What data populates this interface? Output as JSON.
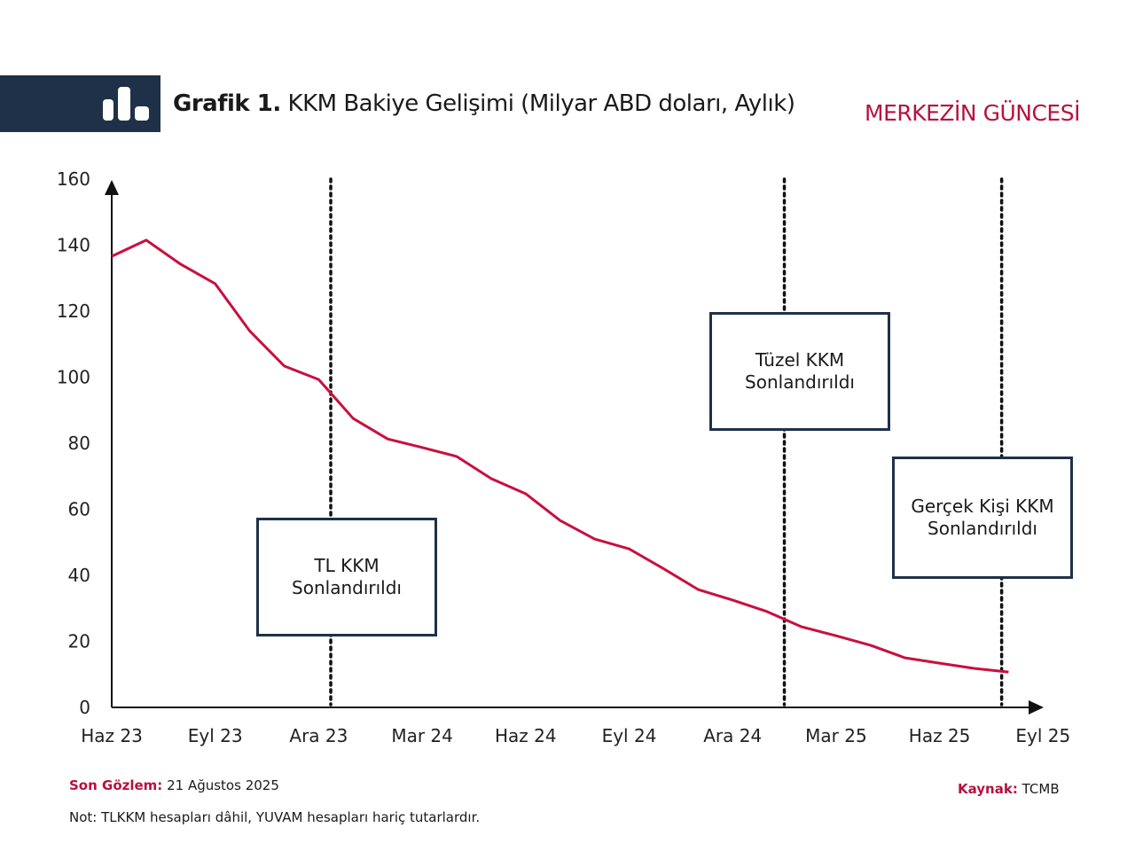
{
  "header": {
    "title_bold": "Grafik 1.",
    "title_rest": "KKM Bakiye Gelişimi (Milyar ABD doları, Aylık)",
    "brand": "MERKEZİN GÜNCESİ",
    "icon": "bar-chart-icon"
  },
  "colors": {
    "line": "#c8103e",
    "navy": "#1e3148",
    "brand": "#b5123f"
  },
  "chart_data": {
    "type": "line",
    "title": "KKM Bakiye Gelişimi (Milyar ABD doları, Aylık)",
    "xlabel": "",
    "ylabel": "",
    "ylim": [
      0,
      160
    ],
    "yticks": [
      "0",
      "20",
      "40",
      "60",
      "80",
      "100",
      "120",
      "140",
      "160"
    ],
    "xticks": [
      "Haz 23",
      "Eyl 23",
      "Ara 23",
      "Mar 24",
      "Haz 24",
      "Eyl 24",
      "Ara 24",
      "Mar 25",
      "Haz 25",
      "Eyl 25"
    ],
    "x_months_from_haz23": [
      0,
      1,
      2,
      3,
      4,
      5,
      6,
      7,
      8,
      9,
      10,
      11,
      12,
      13,
      14,
      15,
      16,
      17,
      18,
      19,
      20,
      21,
      22,
      23,
      24,
      25,
      26
    ],
    "series": [
      {
        "name": "KKM Bakiye",
        "values": [
          136.6,
          141.5,
          134.2,
          128.3,
          114,
          103.4,
          99.3,
          87.5,
          81.3,
          78.7,
          76,
          69.3,
          64.7,
          56.6,
          51,
          48,
          42,
          35.7,
          32.5,
          29,
          24.4,
          21.7,
          18.8,
          15,
          13.4,
          11.8,
          10.7
        ]
      }
    ],
    "events": [
      {
        "at_month": 6.35,
        "label_1": "TL KKM",
        "label_2": "Sonlandırıldı"
      },
      {
        "at_month": 19.5,
        "label_1": "Tüzel KKM",
        "label_2": "Sonlandırıldı"
      },
      {
        "at_month": 25.8,
        "label_1": "Gerçek Kişi KKM",
        "label_2": "Sonlandırıldı"
      }
    ]
  },
  "footer": {
    "last_obs_label": "Son Gözlem:",
    "last_obs_value": "21 Ağustos 2025",
    "note": "Not: TLKKM hesapları dâhil, YUVAM hesapları hariç tutarlardır.",
    "source_label": "Kaynak:",
    "source_value": "TCMB"
  }
}
